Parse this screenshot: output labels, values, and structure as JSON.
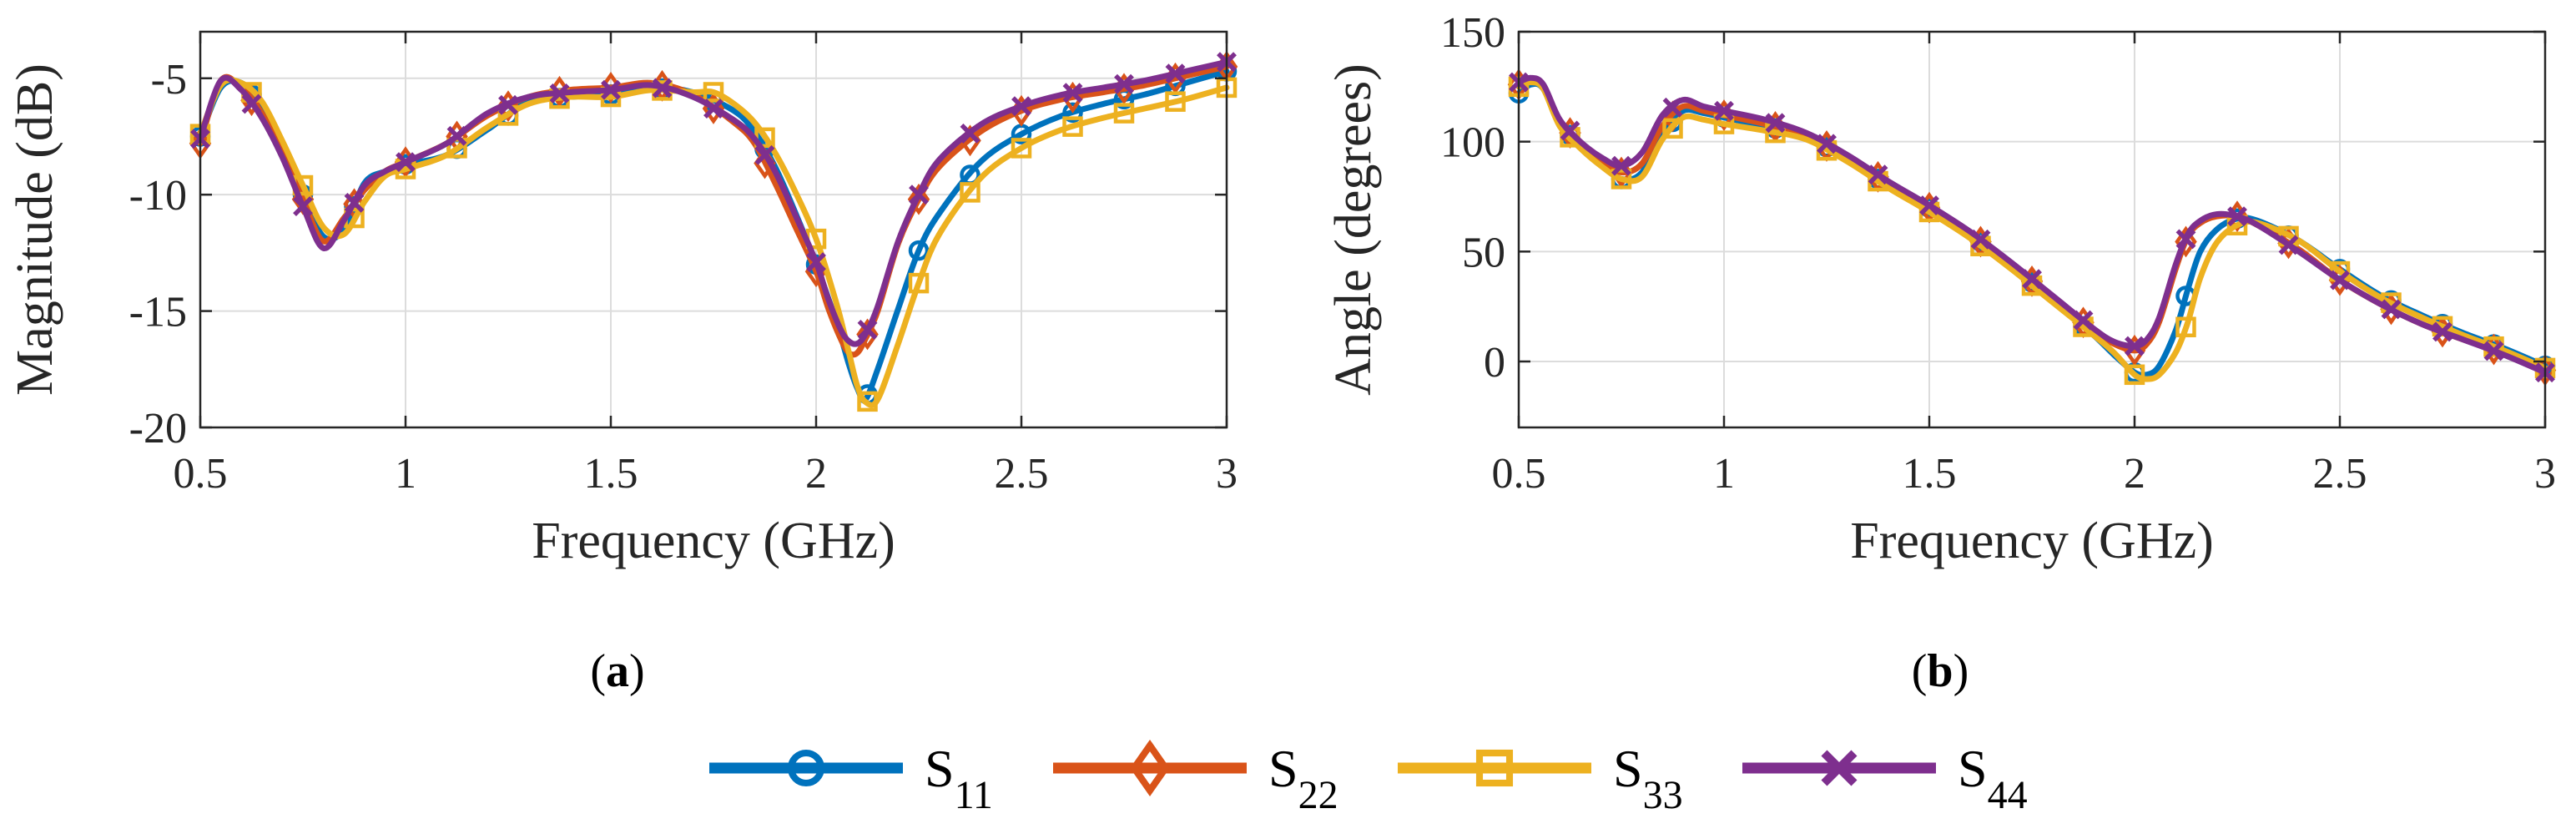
{
  "chart_data": [
    {
      "id": "a",
      "type": "line",
      "panel_label": "a",
      "title": "",
      "xlabel": "Frequency (GHz)",
      "ylabel": "Magnitude (dB)",
      "xlim": [
        0.5,
        3
      ],
      "ylim": [
        -20,
        -3
      ],
      "xticks": [
        0.5,
        1,
        1.5,
        2,
        2.5,
        3
      ],
      "xtick_labels": [
        "0.5",
        "1",
        "1.5",
        "2",
        "2.5",
        "3"
      ],
      "yticks": [
        -20,
        -15,
        -10,
        -5
      ],
      "ytick_labels": [
        "-20",
        "-15",
        "-10",
        "-5"
      ],
      "grid": true,
      "series": [
        {
          "name": "S11",
          "x": [
            0.5,
            0.55,
            0.6,
            0.65,
            0.7,
            0.75,
            0.8,
            0.85,
            0.9,
            0.95,
            1.0,
            1.1,
            1.2,
            1.3,
            1.4,
            1.5,
            1.6,
            1.7,
            1.8,
            1.85,
            1.9,
            1.95,
            2.0,
            2.05,
            2.08,
            2.1,
            2.12,
            2.15,
            2.2,
            2.25,
            2.3,
            2.4,
            2.5,
            2.6,
            2.7,
            2.8,
            2.9,
            3.0
          ],
          "y": [
            -7.5,
            -5.4,
            -5.2,
            -6.2,
            -8.0,
            -10.0,
            -11.8,
            -11.5,
            -9.5,
            -9.0,
            -8.7,
            -8.3,
            -7.2,
            -6.0,
            -5.8,
            -5.7,
            -5.4,
            -5.6,
            -6.4,
            -7.3,
            -8.8,
            -10.8,
            -13.0,
            -15.5,
            -17.3,
            -18.3,
            -18.8,
            -17.5,
            -14.9,
            -12.4,
            -10.8,
            -8.6,
            -7.4,
            -6.6,
            -6.1,
            -5.7,
            -5.2,
            -4.7
          ]
        },
        {
          "name": "S22",
          "x": [
            0.5,
            0.55,
            0.6,
            0.65,
            0.7,
            0.75,
            0.8,
            0.85,
            0.9,
            0.95,
            1.0,
            1.1,
            1.2,
            1.3,
            1.4,
            1.5,
            1.6,
            1.7,
            1.8,
            1.85,
            1.9,
            1.95,
            2.0,
            2.03,
            2.06,
            2.08,
            2.1,
            2.12,
            2.15,
            2.2,
            2.25,
            2.3,
            2.4,
            2.5,
            2.6,
            2.7,
            2.8,
            2.9,
            3.0
          ],
          "y": [
            -7.8,
            -5.1,
            -5.4,
            -6.5,
            -8.2,
            -10.2,
            -12.0,
            -11.0,
            -9.8,
            -9.0,
            -8.6,
            -7.8,
            -6.6,
            -5.8,
            -5.5,
            -5.4,
            -5.2,
            -5.7,
            -6.9,
            -7.8,
            -9.5,
            -11.4,
            -13.3,
            -14.9,
            -16.2,
            -16.8,
            -16.8,
            -16.2,
            -15.0,
            -12.1,
            -10.2,
            -8.8,
            -7.3,
            -6.4,
            -5.9,
            -5.6,
            -5.3,
            -4.9,
            -4.5
          ]
        },
        {
          "name": "S33",
          "x": [
            0.5,
            0.55,
            0.6,
            0.65,
            0.7,
            0.75,
            0.8,
            0.85,
            0.9,
            0.95,
            1.0,
            1.1,
            1.2,
            1.3,
            1.4,
            1.5,
            1.6,
            1.7,
            1.75,
            1.8,
            1.85,
            1.9,
            1.95,
            2.0,
            2.05,
            2.08,
            2.1,
            2.12,
            2.15,
            2.2,
            2.25,
            2.3,
            2.4,
            2.5,
            2.6,
            2.7,
            2.8,
            2.9,
            3.0
          ],
          "y": [
            -7.4,
            -5.3,
            -5.2,
            -6.0,
            -7.7,
            -9.6,
            -11.4,
            -11.7,
            -10.3,
            -9.2,
            -8.9,
            -8.3,
            -7.1,
            -6.1,
            -5.8,
            -5.8,
            -5.5,
            -5.6,
            -5.6,
            -6.1,
            -6.9,
            -8.2,
            -9.9,
            -11.9,
            -14.7,
            -16.8,
            -18.2,
            -18.9,
            -18.8,
            -16.4,
            -13.8,
            -11.7,
            -9.3,
            -8.0,
            -7.2,
            -6.7,
            -6.3,
            -5.9,
            -5.4
          ]
        },
        {
          "name": "S44",
          "x": [
            0.5,
            0.55,
            0.6,
            0.65,
            0.7,
            0.75,
            0.8,
            0.85,
            0.9,
            0.95,
            1.0,
            1.1,
            1.2,
            1.3,
            1.4,
            1.5,
            1.6,
            1.7,
            1.8,
            1.85,
            1.9,
            1.95,
            2.0,
            2.03,
            2.06,
            2.08,
            2.1,
            2.12,
            2.15,
            2.2,
            2.25,
            2.3,
            2.4,
            2.5,
            2.6,
            2.7,
            2.8,
            2.9,
            3.0
          ],
          "y": [
            -7.6,
            -5.1,
            -5.5,
            -6.7,
            -8.4,
            -10.5,
            -12.3,
            -11.1,
            -9.6,
            -9.0,
            -8.6,
            -7.8,
            -6.5,
            -5.8,
            -5.6,
            -5.5,
            -5.3,
            -5.8,
            -6.8,
            -7.6,
            -9.0,
            -10.9,
            -12.9,
            -14.5,
            -15.8,
            -16.3,
            -16.4,
            -16.0,
            -14.8,
            -12.0,
            -10.0,
            -8.5,
            -7.0,
            -6.2,
            -5.7,
            -5.4,
            -5.1,
            -4.7,
            -4.3
          ]
        }
      ]
    },
    {
      "id": "b",
      "type": "line",
      "panel_label": "b",
      "title": "",
      "xlabel": "Frequency (GHz)",
      "ylabel": "Angle (degrees)",
      "xlim": [
        0.5,
        3
      ],
      "ylim": [
        -30,
        150
      ],
      "xticks": [
        0.5,
        1,
        1.5,
        2,
        2.5,
        3
      ],
      "xtick_labels": [
        "0.5",
        "1",
        "1.5",
        "2",
        "2.5",
        "3"
      ],
      "yticks": [
        0,
        50,
        100,
        150
      ],
      "ytick_labels": [
        "0",
        "50",
        "100",
        "150"
      ],
      "grid": true,
      "series": [
        {
          "name": "S11",
          "x": [
            0.5,
            0.53,
            0.56,
            0.6,
            0.65,
            0.7,
            0.75,
            0.8,
            0.85,
            0.9,
            0.95,
            1.0,
            1.1,
            1.2,
            1.3,
            1.4,
            1.5,
            1.6,
            1.7,
            1.8,
            1.9,
            1.95,
            2.0,
            2.03,
            2.06,
            2.1,
            2.13,
            2.16,
            2.2,
            2.25,
            2.3,
            2.4,
            2.5,
            2.6,
            2.7,
            2.8,
            2.9,
            3.0
          ],
          "y": [
            122,
            126,
            124,
            108,
            98,
            90,
            83,
            86,
            104,
            114,
            113,
            111,
            107,
            103,
            92,
            80,
            70,
            58,
            44,
            28,
            12,
            3,
            -5,
            -6,
            -2,
            14,
            33,
            50,
            60,
            65,
            64,
            55,
            42,
            30,
            21,
            13,
            6,
            -2
          ]
        },
        {
          "name": "S22",
          "x": [
            0.5,
            0.53,
            0.56,
            0.6,
            0.65,
            0.7,
            0.75,
            0.8,
            0.85,
            0.9,
            0.95,
            1.0,
            1.1,
            1.2,
            1.3,
            1.4,
            1.5,
            1.6,
            1.7,
            1.8,
            1.9,
            1.95,
            2.0,
            2.03,
            2.06,
            2.1,
            2.13,
            2.16,
            2.2,
            2.25,
            2.3,
            2.4,
            2.5,
            2.6,
            2.7,
            2.8,
            2.9,
            3.0
          ],
          "y": [
            126,
            128,
            125,
            109,
            99,
            91,
            86,
            90,
            107,
            116,
            114,
            112,
            108,
            103,
            93,
            81,
            70,
            58,
            44,
            29,
            14,
            8,
            5,
            8,
            18,
            42,
            57,
            63,
            66,
            66,
            62,
            51,
            37,
            26,
            17,
            10,
            4,
            -4
          ]
        },
        {
          "name": "S33",
          "x": [
            0.5,
            0.53,
            0.56,
            0.6,
            0.65,
            0.7,
            0.75,
            0.8,
            0.85,
            0.9,
            0.95,
            1.0,
            1.1,
            1.2,
            1.3,
            1.4,
            1.5,
            1.6,
            1.7,
            1.8,
            1.9,
            1.95,
            2.0,
            2.03,
            2.06,
            2.1,
            2.13,
            2.16,
            2.2,
            2.25,
            2.3,
            2.4,
            2.5,
            2.6,
            2.7,
            2.8,
            2.9,
            3.0
          ],
          "y": [
            125,
            127,
            124,
            107,
            97,
            89,
            83,
            84,
            101,
            111,
            110,
            108,
            105,
            101,
            91,
            79,
            68,
            56,
            42,
            27,
            12,
            4,
            -6,
            -8,
            -6,
            4,
            18,
            38,
            54,
            62,
            63,
            55,
            41,
            29,
            20,
            12,
            5,
            -3
          ]
        },
        {
          "name": "S44",
          "x": [
            0.5,
            0.53,
            0.56,
            0.6,
            0.65,
            0.7,
            0.75,
            0.8,
            0.85,
            0.9,
            0.95,
            1.0,
            1.1,
            1.2,
            1.3,
            1.4,
            1.5,
            1.6,
            1.7,
            1.8,
            1.9,
            1.95,
            2.0,
            2.03,
            2.06,
            2.1,
            2.13,
            2.16,
            2.2,
            2.25,
            2.3,
            2.4,
            2.5,
            2.6,
            2.7,
            2.8,
            2.9,
            3.0
          ],
          "y": [
            127,
            129,
            126,
            110,
            100,
            93,
            89,
            95,
            112,
            119,
            116,
            114,
            110,
            104,
            94,
            82,
            71,
            59,
            45,
            30,
            15,
            9,
            7,
            10,
            20,
            44,
            58,
            64,
            67,
            66,
            62,
            50,
            37,
            26,
            17,
            10,
            3,
            -5
          ]
        }
      ]
    }
  ],
  "legend": {
    "entries": [
      {
        "base": "S",
        "sub": "11",
        "color": "#0072BD",
        "marker": "circle"
      },
      {
        "base": "S",
        "sub": "22",
        "color": "#D95319",
        "marker": "diamond"
      },
      {
        "base": "S",
        "sub": "33",
        "color": "#EDB120",
        "marker": "square"
      },
      {
        "base": "S",
        "sub": "44",
        "color": "#7E2F8E",
        "marker": "x"
      }
    ]
  },
  "series_style": [
    {
      "color": "#0072BD",
      "marker": "circle"
    },
    {
      "color": "#D95319",
      "marker": "diamond"
    },
    {
      "color": "#EDB120",
      "marker": "square"
    },
    {
      "color": "#7E2F8E",
      "marker": "x"
    }
  ]
}
